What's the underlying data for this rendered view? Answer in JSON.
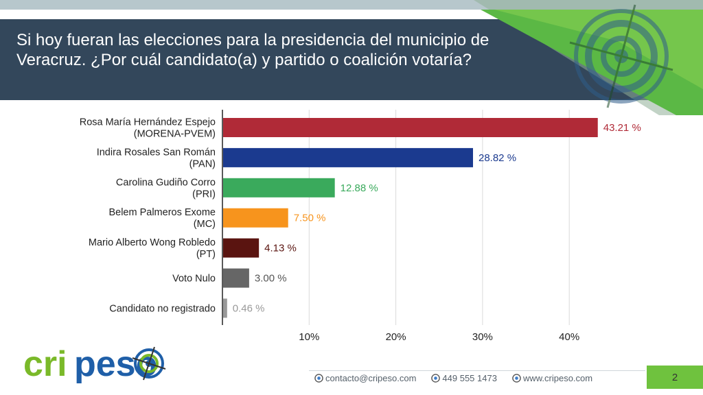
{
  "header": {
    "title": "Si hoy fueran las elecciones para la presidencia del municipio de Veracruz. ¿Por cuál candidato(a) y partido o coalición votaría?"
  },
  "chart_data": {
    "type": "bar",
    "orientation": "horizontal",
    "categories": [
      [
        "Rosa María Hernández Espejo",
        "(MORENA-PVEM)"
      ],
      [
        "Indira Rosales San Román",
        "(PAN)"
      ],
      [
        "Carolina Gudiño Corro",
        "(PRI)"
      ],
      [
        "Belem Palmeros Exome",
        "(MC)"
      ],
      [
        "Mario Alberto Wong Robledo",
        "(PT)"
      ],
      [
        "Voto Nulo"
      ],
      [
        "Candidato no registrado"
      ]
    ],
    "values": [
      43.21,
      28.82,
      12.88,
      7.5,
      4.13,
      3.0,
      0.46
    ],
    "value_labels": [
      "43.21 %",
      "28.82 %",
      "12.88 %",
      "7.50 %",
      "4.13 %",
      "3.00 %",
      "0.46 %"
    ],
    "colors": [
      "#b02a37",
      "#1b3a8f",
      "#3aaa5c",
      "#f7941d",
      "#5a1410",
      "#666666",
      "#999999"
    ],
    "label_colors": [
      "#b02a37",
      "#1b3a8f",
      "#3aaa5c",
      "#f7941d",
      "#5a1410",
      "#555555",
      "#999999"
    ],
    "xticks": [
      10,
      20,
      30,
      40
    ],
    "xtick_labels": [
      "10%",
      "20%",
      "30%",
      "40%"
    ],
    "xlim": [
      0,
      45
    ],
    "grid": true
  },
  "footer": {
    "logo_text": "cripeso",
    "email": "contacto@cripeso.com",
    "phone": "449 555 1473",
    "website": "www.cripeso.com",
    "page_number": "2"
  },
  "colors": {
    "header_bg": "#33475b",
    "accent_green": "#6fc23e",
    "logo_green": "#7ab929",
    "logo_blue": "#1f5fa8"
  }
}
